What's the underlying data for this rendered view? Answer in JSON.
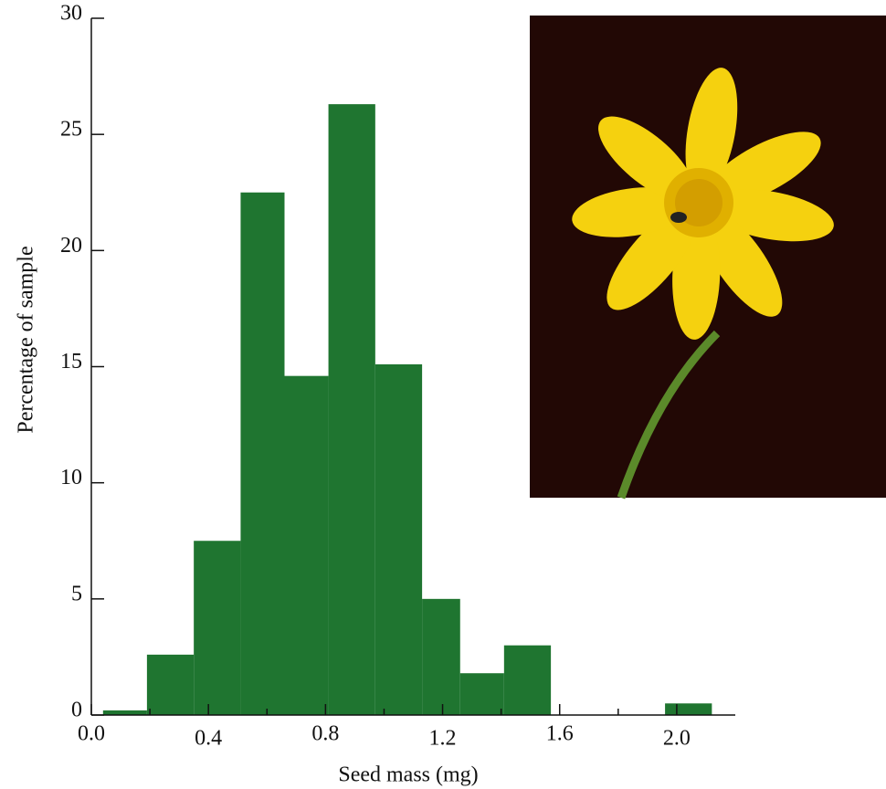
{
  "chart_data": {
    "type": "histogram",
    "x_label": "Seed mass (mg)",
    "y_label": "Percentage of sample",
    "bins": [
      0.04,
      0.19,
      0.35,
      0.51,
      0.66,
      0.81,
      0.97,
      1.13,
      1.26,
      1.41,
      1.57,
      1.96,
      2.12
    ],
    "values": [
      0.2,
      2.6,
      7.5,
      22.5,
      14.6,
      26.3,
      15.1,
      5.0,
      1.8,
      3.0,
      0,
      0.5
    ],
    "color": "#1f7530",
    "xlim": [
      0,
      2.2
    ],
    "xticks": [
      {
        "value": 0,
        "label": "0.0"
      },
      0.4,
      0.8,
      1.2,
      1.6,
      {
        "value": 2,
        "label": "2.0"
      }
    ],
    "xminor_ticks": [
      0.2,
      0.6,
      1,
      1.4,
      1.8
    ],
    "ylim": [
      0,
      30
    ],
    "yticks": [
      0,
      5,
      10,
      15,
      20,
      25,
      30
    ]
  }
}
